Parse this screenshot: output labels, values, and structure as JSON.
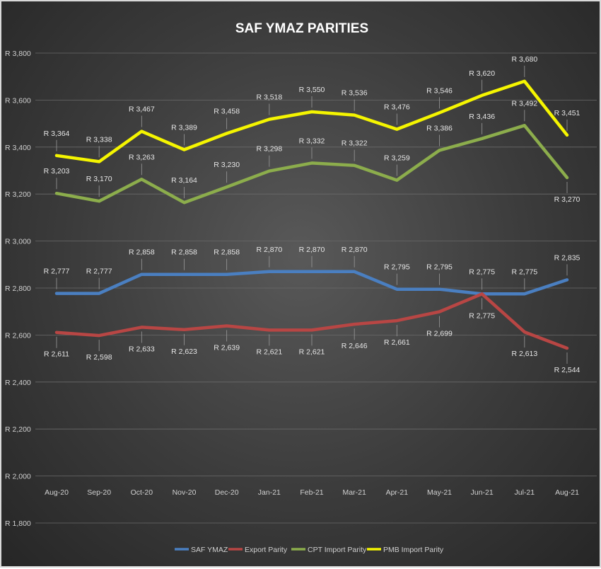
{
  "chart_data": {
    "type": "line",
    "title": "SAF YMAZ PARITIES",
    "xlabel": "",
    "ylabel": "",
    "categories": [
      "Aug-20",
      "Sep-20",
      "Oct-20",
      "Nov-20",
      "Dec-20",
      "Jan-21",
      "Feb-21",
      "Mar-21",
      "Apr-21",
      "May-21",
      "Jun-21",
      "Jul-21",
      "Aug-21"
    ],
    "ylim": [
      1800,
      3800
    ],
    "yticks": [
      1800,
      2000,
      2200,
      2400,
      2600,
      2800,
      3000,
      3200,
      3400,
      3600,
      3800
    ],
    "ytick_labels": [
      "R 1,800",
      "R 2,000",
      "R 2,200",
      "R 2,400",
      "R 2,600",
      "R 2,800",
      "R 3,000",
      "R 3,200",
      "R 3,400",
      "R 3,600",
      "R 3,800"
    ],
    "grid": true,
    "legend_position": "bottom",
    "series": [
      {
        "name": "SAF YMAZ",
        "color": "#4a7fc1",
        "values": [
          2777,
          2777,
          2858,
          2858,
          2858,
          2870,
          2870,
          2870,
          2795,
          2795,
          2775,
          2775,
          2835
        ],
        "labels": [
          "R 2,777",
          "R 2,777",
          "R 2,858",
          "R 2,858",
          "R 2,858",
          "R 2,870",
          "R 2,870",
          "R 2,870",
          "R 2,795",
          "R 2,795",
          "R 2,775",
          "R 2,775",
          "R 2,835"
        ]
      },
      {
        "name": "Export Parity",
        "color": "#b84644",
        "values": [
          2611,
          2598,
          2633,
          2623,
          2639,
          2621,
          2621,
          2646,
          2661,
          2699,
          2775,
          2613,
          2544
        ],
        "labels": [
          "R 2,611",
          "R 2,598",
          "R 2,633",
          "R 2,623",
          "R 2,639",
          "R 2,621",
          "R 2,621",
          "R 2,646",
          "R 2,661",
          "R 2,699",
          "R 2,775",
          "R 2,613",
          "R 2,544"
        ]
      },
      {
        "name": "CPT Import Parity",
        "color": "#8cad4c",
        "values": [
          3203,
          3170,
          3263,
          3164,
          3230,
          3298,
          3332,
          3322,
          3259,
          3386,
          3436,
          3492,
          3270
        ],
        "labels": [
          "R 3,203",
          "R 3,170",
          "R 3,263",
          "R 3,164",
          "R 3,230",
          "R 3,298",
          "R 3,332",
          "R 3,322",
          "R 3,259",
          "R 3,386",
          "R 3,436",
          "R 3,492",
          "R 3,270"
        ]
      },
      {
        "name": "PMB Import Parity",
        "color": "#f5f500",
        "values": [
          3364,
          3338,
          3467,
          3389,
          3458,
          3518,
          3550,
          3536,
          3476,
          3546,
          3620,
          3680,
          3451
        ],
        "labels": [
          "R 3,364",
          "R 3,338",
          "R 3,467",
          "R 3,389",
          "R 3,458",
          "R 3,518",
          "R 3,550",
          "R 3,536",
          "R 3,476",
          "R 3,546",
          "R 3,620",
          "R 3,680",
          "R 3,451"
        ]
      }
    ]
  }
}
